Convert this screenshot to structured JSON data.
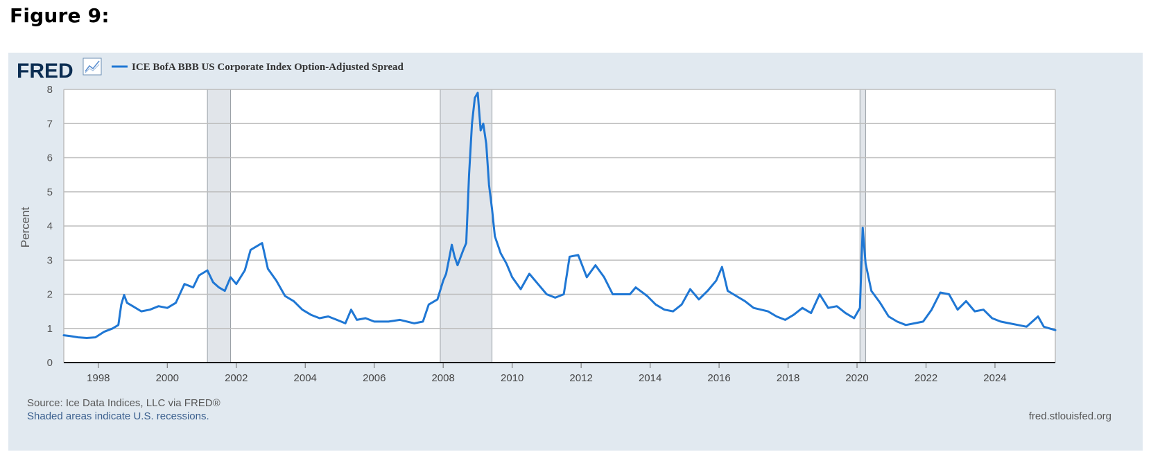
{
  "figure_title": "Figure 9:",
  "brand": {
    "logo_text": "FRED",
    "logo_icon": "line-graph-icon",
    "colors": {
      "line": "#1f77d4",
      "panel": "#e1e9f0",
      "recession": "#e1e5ea"
    }
  },
  "footer": {
    "source": "Source: Ice Data Indices, LLC via FRED®",
    "recession_note": "Shaded areas indicate U.S. recessions.",
    "url": "fred.stlouisfed.org"
  },
  "chart_data": {
    "type": "line",
    "title": "",
    "xlabel": "",
    "ylabel": "Percent",
    "xlim": [
      "1996-12-31",
      "2025-10-01"
    ],
    "ylim": [
      0,
      8
    ],
    "yticks": [
      0,
      1,
      2,
      3,
      4,
      5,
      6,
      7,
      8
    ],
    "xticks": [
      "1998",
      "2000",
      "2002",
      "2004",
      "2006",
      "2008",
      "2010",
      "2012",
      "2014",
      "2016",
      "2018",
      "2020",
      "2022",
      "2024"
    ],
    "grid": true,
    "legend": "top-left",
    "recessions": [
      {
        "start": "2001-03-01",
        "end": "2001-11-01"
      },
      {
        "start": "2007-12-01",
        "end": "2009-06-01"
      },
      {
        "start": "2020-02-01",
        "end": "2020-04-01"
      }
    ],
    "series": [
      {
        "name": "ICE BofA BBB US Corporate Index Option-Adjusted Spread",
        "points": [
          [
            "1996-12-31",
            0.8
          ],
          [
            "1997-03-01",
            0.78
          ],
          [
            "1997-06-01",
            0.74
          ],
          [
            "1997-09-01",
            0.72
          ],
          [
            "1997-12-01",
            0.74
          ],
          [
            "1998-03-01",
            0.9
          ],
          [
            "1998-06-01",
            1.0
          ],
          [
            "1998-08-01",
            1.1
          ],
          [
            "1998-09-01",
            1.7
          ],
          [
            "1998-10-01",
            1.98
          ],
          [
            "1998-11-01",
            1.75
          ],
          [
            "1999-01-01",
            1.65
          ],
          [
            "1999-04-01",
            1.5
          ],
          [
            "1999-07-01",
            1.55
          ],
          [
            "1999-10-01",
            1.65
          ],
          [
            "2000-01-01",
            1.6
          ],
          [
            "2000-04-01",
            1.75
          ],
          [
            "2000-07-01",
            2.3
          ],
          [
            "2000-10-01",
            2.2
          ],
          [
            "2000-12-01",
            2.55
          ],
          [
            "2001-03-01",
            2.7
          ],
          [
            "2001-05-01",
            2.35
          ],
          [
            "2001-07-01",
            2.2
          ],
          [
            "2001-09-01",
            2.1
          ],
          [
            "2001-11-01",
            2.5
          ],
          [
            "2002-01-01",
            2.3
          ],
          [
            "2002-04-01",
            2.7
          ],
          [
            "2002-06-01",
            3.3
          ],
          [
            "2002-08-01",
            3.4
          ],
          [
            "2002-10-01",
            3.5
          ],
          [
            "2002-12-01",
            2.75
          ],
          [
            "2003-03-01",
            2.4
          ],
          [
            "2003-06-01",
            1.95
          ],
          [
            "2003-09-01",
            1.8
          ],
          [
            "2003-12-01",
            1.55
          ],
          [
            "2004-03-01",
            1.4
          ],
          [
            "2004-06-01",
            1.3
          ],
          [
            "2004-09-01",
            1.35
          ],
          [
            "2004-12-01",
            1.25
          ],
          [
            "2005-03-01",
            1.15
          ],
          [
            "2005-05-01",
            1.55
          ],
          [
            "2005-07-01",
            1.25
          ],
          [
            "2005-10-01",
            1.3
          ],
          [
            "2006-01-01",
            1.2
          ],
          [
            "2006-06-01",
            1.2
          ],
          [
            "2006-10-01",
            1.25
          ],
          [
            "2007-03-01",
            1.15
          ],
          [
            "2007-06-01",
            1.2
          ],
          [
            "2007-08-01",
            1.7
          ],
          [
            "2007-11-01",
            1.85
          ],
          [
            "2008-01-01",
            2.4
          ],
          [
            "2008-02-01",
            2.6
          ],
          [
            "2008-03-01",
            3.0
          ],
          [
            "2008-04-01",
            3.45
          ],
          [
            "2008-05-01",
            3.1
          ],
          [
            "2008-06-01",
            2.85
          ],
          [
            "2008-08-01",
            3.3
          ],
          [
            "2008-09-01",
            3.5
          ],
          [
            "2008-10-01",
            5.5
          ],
          [
            "2008-11-01",
            7.0
          ],
          [
            "2008-12-01",
            7.75
          ],
          [
            "2009-01-01",
            7.9
          ],
          [
            "2009-02-01",
            6.8
          ],
          [
            "2009-03-01",
            7.0
          ],
          [
            "2009-04-01",
            6.4
          ],
          [
            "2009-05-01",
            5.2
          ],
          [
            "2009-06-01",
            4.5
          ],
          [
            "2009-07-01",
            3.7
          ],
          [
            "2009-09-01",
            3.2
          ],
          [
            "2009-11-01",
            2.9
          ],
          [
            "2010-01-01",
            2.5
          ],
          [
            "2010-04-01",
            2.15
          ],
          [
            "2010-07-01",
            2.6
          ],
          [
            "2010-10-01",
            2.3
          ],
          [
            "2011-01-01",
            2.0
          ],
          [
            "2011-04-01",
            1.9
          ],
          [
            "2011-07-01",
            2.0
          ],
          [
            "2011-09-01",
            3.1
          ],
          [
            "2011-12-01",
            3.15
          ],
          [
            "2012-03-01",
            2.5
          ],
          [
            "2012-06-01",
            2.85
          ],
          [
            "2012-09-01",
            2.5
          ],
          [
            "2012-12-01",
            2.0
          ],
          [
            "2013-03-01",
            2.0
          ],
          [
            "2013-06-01",
            2.0
          ],
          [
            "2013-08-01",
            2.2
          ],
          [
            "2013-12-01",
            1.95
          ],
          [
            "2014-03-01",
            1.7
          ],
          [
            "2014-06-01",
            1.55
          ],
          [
            "2014-09-01",
            1.5
          ],
          [
            "2014-12-01",
            1.7
          ],
          [
            "2015-03-01",
            2.15
          ],
          [
            "2015-06-01",
            1.85
          ],
          [
            "2015-09-01",
            2.1
          ],
          [
            "2015-12-01",
            2.4
          ],
          [
            "2016-02-01",
            2.8
          ],
          [
            "2016-04-01",
            2.1
          ],
          [
            "2016-07-01",
            1.95
          ],
          [
            "2016-10-01",
            1.8
          ],
          [
            "2017-01-01",
            1.6
          ],
          [
            "2017-06-01",
            1.5
          ],
          [
            "2017-09-01",
            1.35
          ],
          [
            "2017-12-01",
            1.25
          ],
          [
            "2018-03-01",
            1.4
          ],
          [
            "2018-06-01",
            1.6
          ],
          [
            "2018-09-01",
            1.45
          ],
          [
            "2018-12-01",
            2.0
          ],
          [
            "2019-03-01",
            1.6
          ],
          [
            "2019-06-01",
            1.65
          ],
          [
            "2019-09-01",
            1.45
          ],
          [
            "2019-12-01",
            1.3
          ],
          [
            "2020-02-01",
            1.6
          ],
          [
            "2020-03-01",
            3.95
          ],
          [
            "2020-04-01",
            2.9
          ],
          [
            "2020-06-01",
            2.1
          ],
          [
            "2020-09-01",
            1.75
          ],
          [
            "2020-12-01",
            1.35
          ],
          [
            "2021-03-01",
            1.2
          ],
          [
            "2021-06-01",
            1.1
          ],
          [
            "2021-09-01",
            1.15
          ],
          [
            "2021-12-01",
            1.2
          ],
          [
            "2022-03-01",
            1.55
          ],
          [
            "2022-06-01",
            2.05
          ],
          [
            "2022-09-01",
            2.0
          ],
          [
            "2022-12-01",
            1.55
          ],
          [
            "2023-03-01",
            1.8
          ],
          [
            "2023-06-01",
            1.5
          ],
          [
            "2023-09-01",
            1.55
          ],
          [
            "2023-12-01",
            1.3
          ],
          [
            "2024-03-01",
            1.2
          ],
          [
            "2024-06-01",
            1.15
          ],
          [
            "2024-09-01",
            1.1
          ],
          [
            "2024-12-01",
            1.05
          ],
          [
            "2025-04-01",
            1.35
          ],
          [
            "2025-06-01",
            1.05
          ],
          [
            "2025-08-01",
            1.0
          ],
          [
            "2025-10-01",
            0.95
          ]
        ]
      }
    ]
  }
}
